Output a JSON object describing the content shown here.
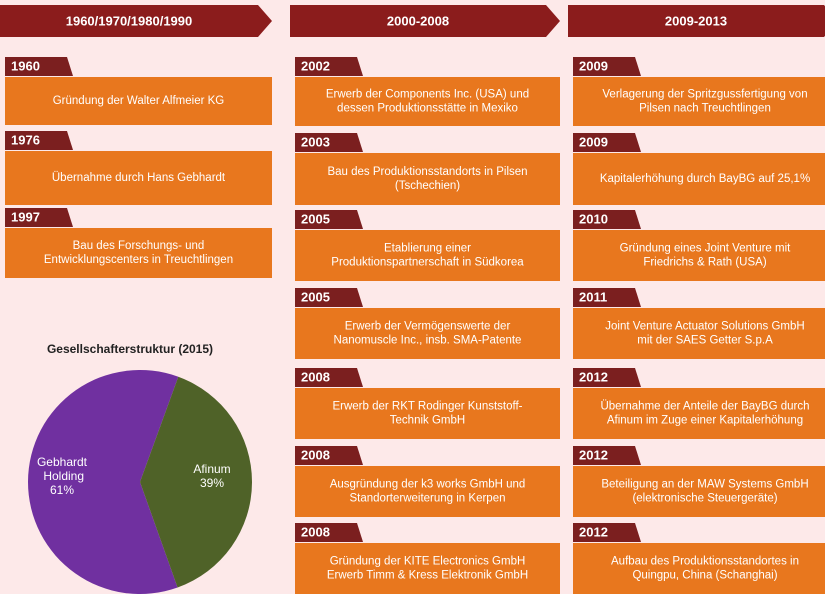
{
  "columns": [
    {
      "header": "1960/1970/1980/1990",
      "entries": [
        {
          "year": "1960",
          "lines": [
            "Gründung der Walter Alfmeier KG"
          ]
        },
        {
          "year": "1976",
          "lines": [
            "Übernahme durch Hans Gebhardt"
          ]
        },
        {
          "year": "1997",
          "lines": [
            "Bau des Forschungs- und",
            "Entwicklungscenters in Treuchtlingen"
          ]
        }
      ]
    },
    {
      "header": "2000-2008",
      "entries": [
        {
          "year": "2002",
          "lines": [
            "Erwerb der Components Inc. (USA) und",
            "dessen Produktionsstätte in Mexiko"
          ]
        },
        {
          "year": "2003",
          "lines": [
            "Bau des Produktionsstandorts in Pilsen",
            "(Tschechien)"
          ]
        },
        {
          "year": "2005",
          "lines": [
            "Etablierung einer",
            "Produktionspartnerschaft in Südkorea"
          ]
        },
        {
          "year": "2005",
          "lines": [
            "Erwerb der Vermögenswerte der",
            "Nanomuscle Inc., insb. SMA-Patente"
          ]
        },
        {
          "year": "2008",
          "lines": [
            "Erwerb der RKT Rodinger Kunststoff-",
            "Technik GmbH"
          ]
        },
        {
          "year": "2008",
          "lines": [
            "Ausgründung der k3 works GmbH und",
            "Standorterweiterung in Kerpen"
          ]
        },
        {
          "year": "2008",
          "lines": [
            "Gründung der KITE Electronics GmbH",
            "Erwerb Timm & Kress Elektronik GmbH"
          ]
        }
      ]
    },
    {
      "header": "2009-2013",
      "entries": [
        {
          "year": "2009",
          "lines": [
            "Verlagerung der Spritzgussfertigung von",
            "Pilsen nach Treuchtlingen"
          ]
        },
        {
          "year": "2009",
          "lines": [
            "Kapitalerhöhung durch BayBG auf 25,1%"
          ]
        },
        {
          "year": "2010",
          "lines": [
            "Gründung eines Joint Venture mit",
            "Friedrichs & Rath (USA)"
          ]
        },
        {
          "year": "2011",
          "lines": [
            "Joint Venture Actuator Solutions GmbH",
            "mit der SAES Getter S.p.A"
          ]
        },
        {
          "year": "2012",
          "lines": [
            "Übernahme der Anteile der BayBG durch",
            "Afinum im Zuge einer Kapitalerhöhung"
          ]
        },
        {
          "year": "2012",
          "lines": [
            "Beteiligung an der MAW Systems GmbH",
            "(elektronische Steuergeräte)"
          ]
        },
        {
          "year": "2012",
          "lines": [
            "Aufbau des Produktionsstandortes in",
            "Quingpu, China (Schanghai)"
          ]
        }
      ]
    }
  ],
  "chart_data": {
    "type": "pie",
    "title": "Gesellschafterstruktur (2015)",
    "categories": [
      "Gebhardt Holding",
      "Afinum"
    ],
    "values": [
      61,
      39
    ],
    "value_labels": [
      "61%",
      "39%"
    ],
    "colors": [
      "#7030a0",
      "#4f6228"
    ]
  }
}
